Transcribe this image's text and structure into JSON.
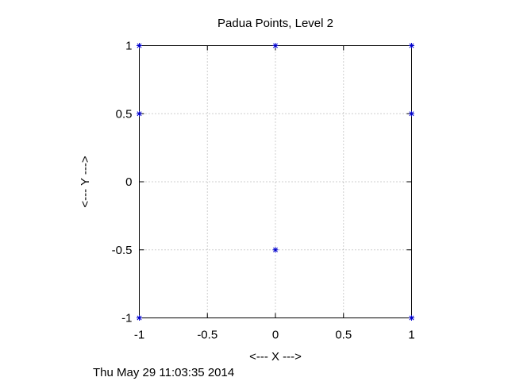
{
  "chart_data": {
    "type": "scatter",
    "title": "Padua Points, Level  2",
    "xlabel": "<--- X --->",
    "ylabel": "<--- Y --->",
    "xlim": [
      -1,
      1
    ],
    "ylim": [
      -1,
      1
    ],
    "xticks": [
      -1,
      -0.5,
      0,
      0.5,
      1
    ],
    "yticks": [
      -1,
      -0.5,
      0,
      0.5,
      1
    ],
    "xtick_labels": [
      "-1",
      "-0.5",
      "0",
      "0.5",
      "1"
    ],
    "ytick_labels": [
      "-1",
      "-0.5",
      "0",
      "0.5",
      "1"
    ],
    "grid": true,
    "marker": "asterisk",
    "marker_color": "#0000cc",
    "points": [
      {
        "x": -1,
        "y": 1
      },
      {
        "x": 0,
        "y": 1
      },
      {
        "x": 1,
        "y": 1
      },
      {
        "x": -1,
        "y": 0.5
      },
      {
        "x": 1,
        "y": 0.5
      },
      {
        "x": 0,
        "y": -0.5
      },
      {
        "x": -1,
        "y": -1
      },
      {
        "x": 1,
        "y": -1
      }
    ]
  },
  "timestamp": "Thu May 29 11:03:35 2014"
}
